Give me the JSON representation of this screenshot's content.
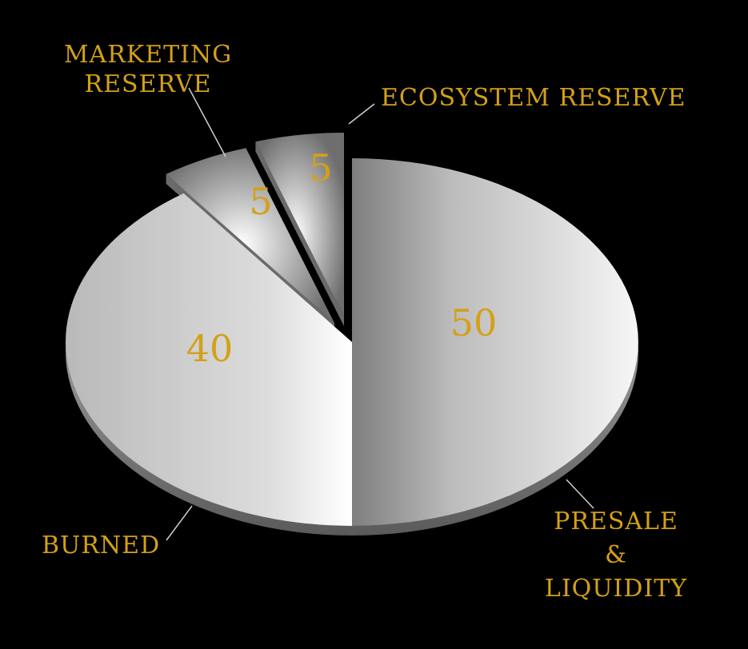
{
  "chart_data": {
    "type": "pie",
    "style": "3d-exploded",
    "categories": [
      "PRESALE & LIQUIDITY",
      "BURNED",
      "MARKETING RESERVE",
      "ECOSYSTEM RESERVE"
    ],
    "values": [
      50,
      40,
      5,
      5
    ],
    "value_labels": [
      "50",
      "40",
      "5",
      "5"
    ],
    "legend_lines": [
      [
        "PRESALE",
        "&",
        "LIQUIDITY"
      ],
      [
        "BURNED"
      ],
      [
        "MARKETING",
        "RESERVE"
      ],
      [
        "ECOSYSTEM RESERVE"
      ]
    ],
    "exploded": [
      false,
      false,
      true,
      true
    ]
  },
  "colors": {
    "background": "#000000",
    "label_gold": "#d4a017",
    "slice_light": "#f2f2f2",
    "slice_dark": "#8a8a8a",
    "leader_line": "#cfcfcf"
  }
}
